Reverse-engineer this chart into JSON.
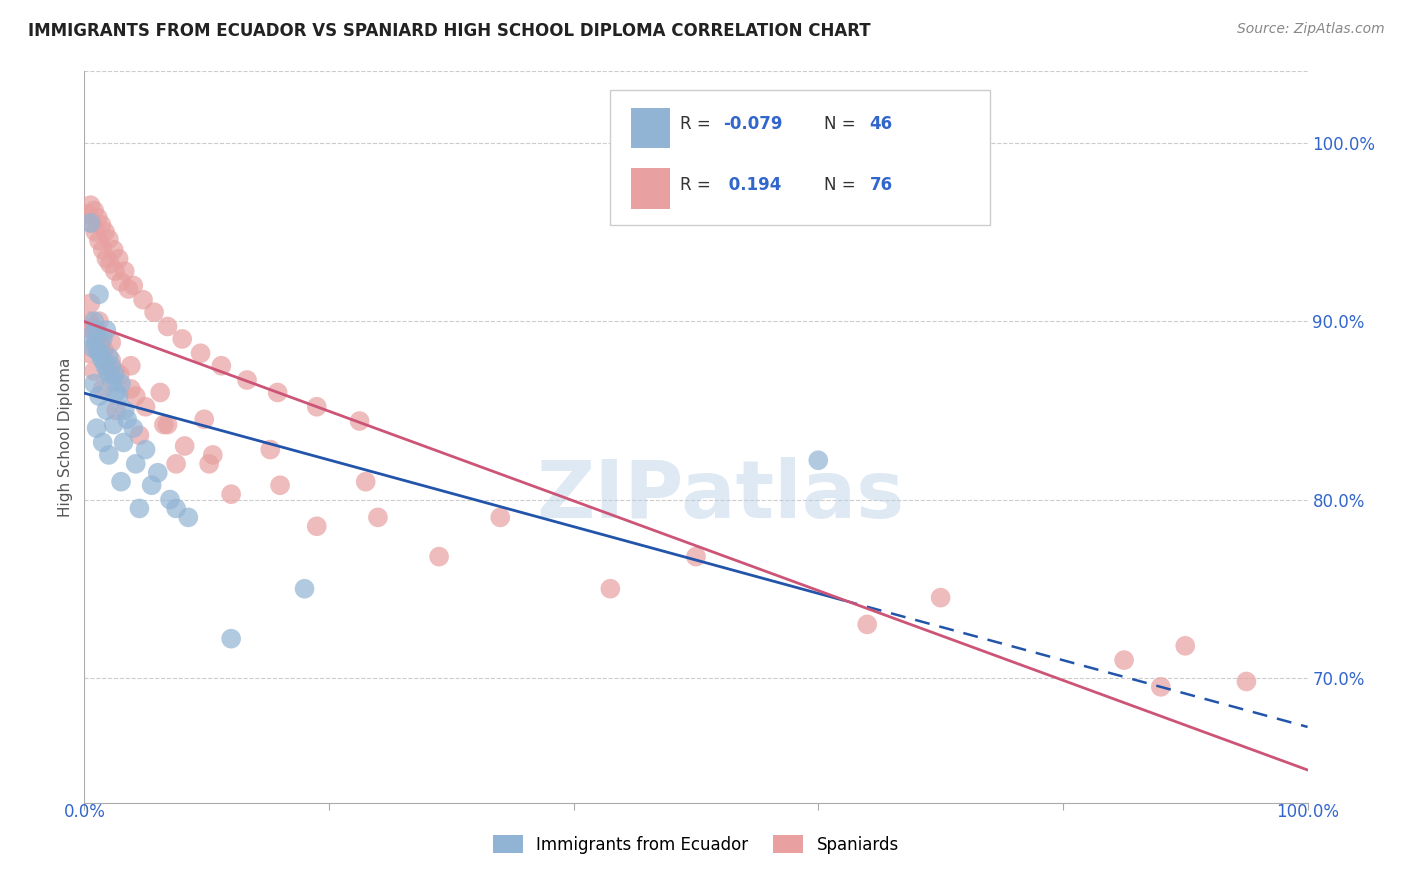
{
  "title": "IMMIGRANTS FROM ECUADOR VS SPANIARD HIGH SCHOOL DIPLOMA CORRELATION CHART",
  "source": "Source: ZipAtlas.com",
  "ylabel": "High School Diploma",
  "legend_r_blue": "-0.079",
  "legend_n_blue": "46",
  "legend_r_pink": "0.194",
  "legend_n_pink": "76",
  "legend_label_blue": "Immigrants from Ecuador",
  "legend_label_pink": "Spaniards",
  "blue_color": "#92b4d4",
  "pink_color": "#e8a0a0",
  "blue_line_color": "#2255aa",
  "pink_line_color": "#cc5577",
  "xlim": [
    0.0,
    1.0
  ],
  "ylim": [
    0.63,
    1.04
  ],
  "yticks": [
    0.7,
    0.8,
    0.9,
    1.0
  ],
  "background_color": "#ffffff",
  "watermark_text": "ZIPatlas",
  "watermark_color": "#b8cfe8",
  "watermark_alpha": 0.45,
  "blue_scatter_x": [
    0.005,
    0.012,
    0.018,
    0.008,
    0.01,
    0.015,
    0.02,
    0.025,
    0.007,
    0.013,
    0.022,
    0.03,
    0.016,
    0.009,
    0.011,
    0.014,
    0.019,
    0.023,
    0.028,
    0.035,
    0.006,
    0.017,
    0.021,
    0.026,
    0.033,
    0.04,
    0.05,
    0.06,
    0.07,
    0.085,
    0.008,
    0.012,
    0.018,
    0.024,
    0.032,
    0.042,
    0.055,
    0.075,
    0.01,
    0.015,
    0.02,
    0.03,
    0.045,
    0.6,
    0.12,
    0.18
  ],
  "blue_scatter_y": [
    0.955,
    0.915,
    0.895,
    0.9,
    0.895,
    0.89,
    0.88,
    0.87,
    0.885,
    0.882,
    0.875,
    0.865,
    0.878,
    0.888,
    0.883,
    0.879,
    0.872,
    0.866,
    0.858,
    0.845,
    0.892,
    0.875,
    0.87,
    0.86,
    0.85,
    0.84,
    0.828,
    0.815,
    0.8,
    0.79,
    0.865,
    0.858,
    0.85,
    0.842,
    0.832,
    0.82,
    0.808,
    0.795,
    0.84,
    0.832,
    0.825,
    0.81,
    0.795,
    0.822,
    0.722,
    0.75
  ],
  "pink_scatter_x": [
    0.003,
    0.006,
    0.009,
    0.012,
    0.015,
    0.018,
    0.021,
    0.025,
    0.03,
    0.036,
    0.005,
    0.008,
    0.011,
    0.014,
    0.017,
    0.02,
    0.024,
    0.028,
    0.033,
    0.04,
    0.048,
    0.057,
    0.068,
    0.08,
    0.095,
    0.112,
    0.133,
    0.158,
    0.19,
    0.225,
    0.004,
    0.007,
    0.01,
    0.013,
    0.016,
    0.022,
    0.029,
    0.038,
    0.05,
    0.065,
    0.082,
    0.102,
    0.006,
    0.014,
    0.025,
    0.042,
    0.068,
    0.105,
    0.16,
    0.24,
    0.003,
    0.008,
    0.015,
    0.026,
    0.045,
    0.075,
    0.12,
    0.19,
    0.29,
    0.43,
    0.64,
    0.85,
    0.88,
    0.005,
    0.012,
    0.022,
    0.038,
    0.062,
    0.098,
    0.152,
    0.23,
    0.34,
    0.5,
    0.7,
    0.9,
    0.95
  ],
  "pink_scatter_y": [
    0.96,
    0.955,
    0.95,
    0.945,
    0.94,
    0.935,
    0.932,
    0.928,
    0.922,
    0.918,
    0.965,
    0.962,
    0.958,
    0.954,
    0.95,
    0.946,
    0.94,
    0.935,
    0.928,
    0.92,
    0.912,
    0.905,
    0.897,
    0.89,
    0.882,
    0.875,
    0.867,
    0.86,
    0.852,
    0.844,
    0.9,
    0.896,
    0.892,
    0.888,
    0.884,
    0.878,
    0.87,
    0.862,
    0.852,
    0.842,
    0.83,
    0.82,
    0.895,
    0.885,
    0.872,
    0.858,
    0.842,
    0.825,
    0.808,
    0.79,
    0.882,
    0.872,
    0.862,
    0.85,
    0.836,
    0.82,
    0.803,
    0.785,
    0.768,
    0.75,
    0.73,
    0.71,
    0.695,
    0.91,
    0.9,
    0.888,
    0.875,
    0.86,
    0.845,
    0.828,
    0.81,
    0.79,
    0.768,
    0.745,
    0.718,
    0.698
  ]
}
